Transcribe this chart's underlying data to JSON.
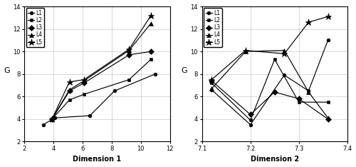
{
  "left_plot": {
    "xlabel": "Dimension 1",
    "ylabel": "G",
    "xlim": [
      2,
      12
    ],
    "ylim": [
      2,
      14
    ],
    "xticks": [
      2,
      4,
      6,
      8,
      10,
      12
    ],
    "yticks": [
      2,
      4,
      6,
      8,
      10,
      12,
      14
    ],
    "series": {
      "L1": {
        "x": [
          3.3,
          4.1,
          6.5,
          8.2,
          11.0
        ],
        "y": [
          3.5,
          4.1,
          4.3,
          6.5,
          8.0
        ],
        "marker": "o"
      },
      "L2": {
        "x": [
          3.9,
          5.1,
          6.1,
          9.2,
          10.7
        ],
        "y": [
          4.0,
          5.7,
          6.2,
          7.5,
          9.3
        ],
        "marker": "s"
      },
      "L3": {
        "x": [
          3.9,
          5.1,
          6.1,
          9.2,
          10.7
        ],
        "y": [
          4.0,
          6.5,
          7.2,
          9.7,
          10.0
        ],
        "marker": "p"
      },
      "L4": {
        "x": [
          3.9,
          5.1,
          6.1,
          9.2,
          10.7
        ],
        "y": [
          4.0,
          6.6,
          7.4,
          10.1,
          12.5
        ],
        "marker": "^"
      },
      "L5": {
        "x": [
          3.9,
          5.1,
          6.1,
          9.2,
          10.7
        ],
        "y": [
          4.0,
          7.3,
          7.5,
          10.2,
          13.2
        ],
        "marker": "*"
      }
    }
  },
  "right_plot": {
    "xlabel": "Dimension 2",
    "ylabel": "G",
    "xlim": [
      7.1,
      7.4
    ],
    "ylim": [
      2,
      14
    ],
    "xticks": [
      7.1,
      7.2,
      7.3,
      7.4
    ],
    "yticks": [
      2,
      4,
      6,
      8,
      10,
      12,
      14
    ],
    "series": {
      "L1": {
        "x": [
          7.12,
          7.2,
          7.27,
          7.32,
          7.36
        ],
        "y": [
          6.6,
          3.5,
          7.9,
          6.5,
          11.0
        ],
        "marker": "o"
      },
      "L2": {
        "x": [
          7.12,
          7.2,
          7.25,
          7.3,
          7.36
        ],
        "y": [
          7.2,
          3.9,
          9.3,
          5.5,
          5.5
        ],
        "marker": "s"
      },
      "L3": {
        "x": [
          7.12,
          7.2,
          7.25,
          7.3,
          7.36
        ],
        "y": [
          7.4,
          4.4,
          6.4,
          5.8,
          4.0
        ],
        "marker": "p"
      },
      "L4": {
        "x": [
          7.12,
          7.19,
          7.27,
          7.32,
          7.36
        ],
        "y": [
          6.7,
          10.0,
          10.1,
          6.4,
          4.1
        ],
        "marker": "^"
      },
      "L5": {
        "x": [
          7.12,
          7.19,
          7.27,
          7.32,
          7.36
        ],
        "y": [
          7.5,
          10.1,
          9.8,
          12.6,
          13.1
        ],
        "marker": "*"
      }
    }
  }
}
